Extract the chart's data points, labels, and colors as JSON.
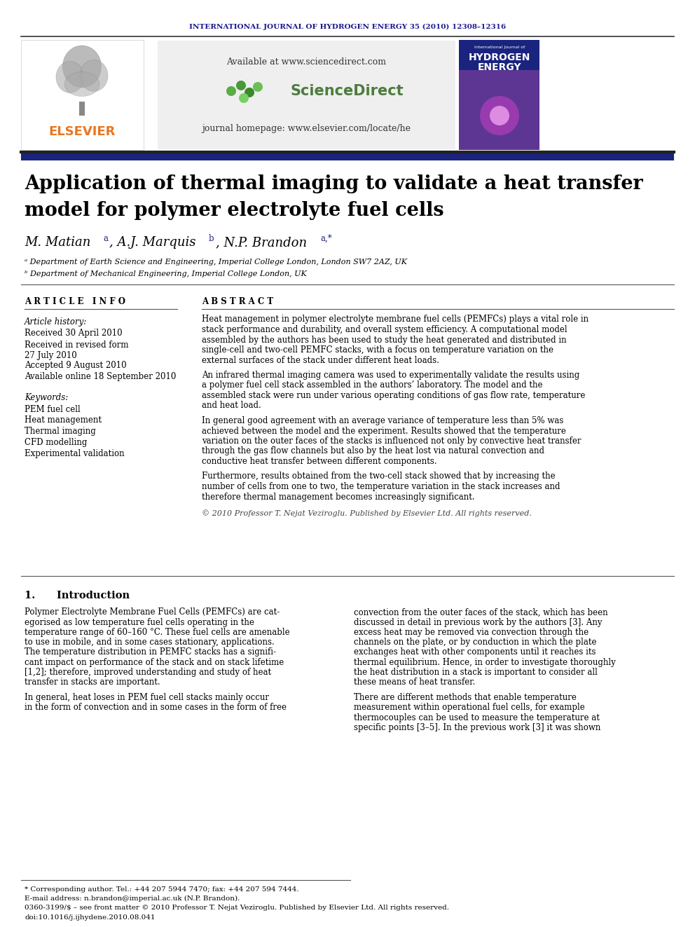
{
  "journal_header": "INTERNATIONAL JOURNAL OF HYDROGEN ENERGY 35 (2010) 12308–12316",
  "journal_header_color": "#1a1a8c",
  "header_url": "Available at www.sciencedirect.com",
  "journal_homepage": "journal homepage: www.elsevier.com/locate/he",
  "title_line1": "Application of thermal imaging to validate a heat transfer",
  "title_line2": "model for polymer electrolyte fuel cells",
  "affil_a": "° Department of Earth Science and Engineering, Imperial College London, London SW7 2AZ, UK",
  "affil_b": "ᵇ Department of Mechanical Engineering, Imperial College London, UK",
  "article_info_header": "A R T I C L E   I N F O",
  "abstract_header": "A B S T R A C T",
  "article_history_label": "Article history:",
  "received1": "Received 30 April 2010",
  "received2": "Received in revised form",
  "received2b": "27 July 2010",
  "accepted": "Accepted 9 August 2010",
  "available": "Available online 18 September 2010",
  "keywords_label": "Keywords:",
  "kw1": "PEM fuel cell",
  "kw2": "Heat management",
  "kw3": "Thermal imaging",
  "kw4": "CFD modelling",
  "kw5": "Experimental validation",
  "abstract_p1": "Heat management in polymer electrolyte membrane fuel cells (PEMFCs) plays a vital role in\nstack performance and durability, and overall system efficiency. A computational model\nassembled by the authors has been used to study the heat generated and distributed in\nsingle-cell and two-cell PEMFC stacks, with a focus on temperature variation on the\nexternal surfaces of the stack under different heat loads.",
  "abstract_p2": "An infrared thermal imaging camera was used to experimentally validate the results using\na polymer fuel cell stack assembled in the authors’ laboratory. The model and the\nassembled stack were run under various operating conditions of gas flow rate, temperature\nand heat load.",
  "abstract_p3": "In general good agreement with an average variance of temperature less than 5% was\nachieved between the model and the experiment. Results showed that the temperature\nvariation on the outer faces of the stacks is influenced not only by convective heat transfer\nthrough the gas flow channels but also by the heat lost via natural convection and\nconductive heat transfer between different components.",
  "abstract_p4": "Furthermore, results obtained from the two-cell stack showed that by increasing the\nnumber of cells from one to two, the temperature variation in the stack increases and\ntherefore thermal management becomes increasingly significant.",
  "copyright": "© 2010 Professor T. Nejat Veziroglu. Published by Elsevier Ltd. All rights reserved.",
  "section1_title": "1.      Introduction",
  "intro_col1_p1": "Polymer Electrolyte Membrane Fuel Cells (PEMFCs) are cat-\negorised as low temperature fuel cells operating in the\ntemperature range of 60–160 °C. These fuel cells are amenable\nto use in mobile, and in some cases stationary, applications.\nThe temperature distribution in PEMFC stacks has a signifi-\ncant impact on performance of the stack and on stack lifetime\n[1,2]; therefore, improved understanding and study of heat\ntransfer in stacks are important.",
  "intro_col1_p2": "In general, heat loses in PEM fuel cell stacks mainly occur\nin the form of convection and in some cases in the form of free",
  "intro_col2_p1": "convection from the outer faces of the stack, which has been\ndiscussed in detail in previous work by the authors [3]. Any\nexcess heat may be removed via convection through the\nchannels on the plate, or by conduction in which the plate\nexchanges heat with other components until it reaches its\nthermal equilibrium. Hence, in order to investigate thoroughly\nthe heat distribution in a stack is important to consider all\nthese means of heat transfer.",
  "intro_col2_p2": "There are different methods that enable temperature\nmeasurement within operational fuel cells, for example\nthermocouples can be used to measure the temperature at\nspecific points [3–5]. In the previous work [3] it was shown",
  "footnote_corresponding": "* Corresponding author. Tel.: +44 207 5944 7470; fax: +44 207 594 7444.",
  "footnote_email": "E-mail address: n.brandon@imperial.ac.uk (N.P. Brandon).",
  "footnote_issn": "0360-3199/$ – see front matter © 2010 Professor T. Nejat Veziroglu. Published by Elsevier Ltd. All rights reserved.",
  "footnote_doi": "doi:10.1016/j.ijhydene.2010.08.041",
  "background_color": "#ffffff",
  "header_bar_color": "#1a237e",
  "title_bar_color": "#1a237e",
  "sd_box_color": "#efefef",
  "elsevier_color": "#e87722"
}
